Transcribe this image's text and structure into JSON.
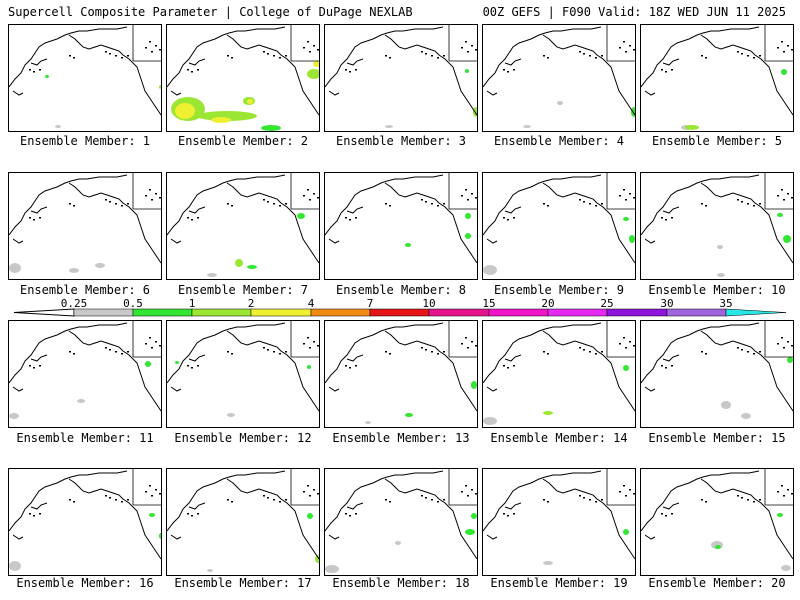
{
  "header": {
    "title": "Supercell Composite Parameter | College of DuPage NEXLAB",
    "run_info": "00Z GEFS | F090 Valid: 18Z WED JUN 11 2025"
  },
  "members": [
    {
      "label": "Ensemble Member: 1"
    },
    {
      "label": "Ensemble Member: 2"
    },
    {
      "label": "Ensemble Member: 3"
    },
    {
      "label": "Ensemble Member: 4"
    },
    {
      "label": "Ensemble Member: 5"
    },
    {
      "label": "Ensemble Member: 6"
    },
    {
      "label": "Ensemble Member: 7"
    },
    {
      "label": "Ensemble Member: 8"
    },
    {
      "label": "Ensemble Member: 9"
    },
    {
      "label": "Ensemble Member: 10"
    },
    {
      "label": "Ensemble Member: 11"
    },
    {
      "label": "Ensemble Member: 12"
    },
    {
      "label": "Ensemble Member: 13"
    },
    {
      "label": "Ensemble Member: 14"
    },
    {
      "label": "Ensemble Member: 15"
    },
    {
      "label": "Ensemble Member: 16"
    },
    {
      "label": "Ensemble Member: 17"
    },
    {
      "label": "Ensemble Member: 18"
    },
    {
      "label": "Ensemble Member: 19"
    },
    {
      "label": "Ensemble Member: 20"
    }
  ],
  "colorbar": {
    "ticks": [
      "0.25",
      "0.5",
      "1",
      "2",
      "4",
      "7",
      "10",
      "15",
      "20",
      "25",
      "30",
      "35"
    ],
    "colors": [
      "#c8c8c8",
      "#32e632",
      "#9be632",
      "#f0f032",
      "#f08c14",
      "#e61414",
      "#e6148c",
      "#f014c8",
      "#e628f0",
      "#8c14dc",
      "#a064dc",
      "#28e6e6"
    ]
  },
  "colors": {
    "land_outline": "#000000",
    "weak_signal": "#c8c8c8",
    "light_green": "#32e632",
    "yellow": "#f0f032"
  }
}
